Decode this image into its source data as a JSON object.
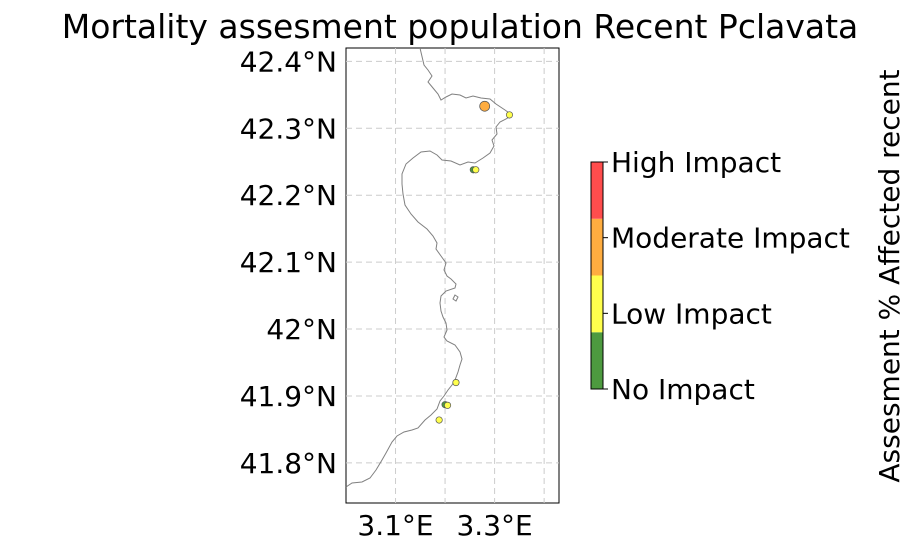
{
  "title": "Mortality assesment population Recent Pclavata",
  "map": {
    "lat_ticks": [
      "42.4°N",
      "42.3°N",
      "42.2°N",
      "42.1°N",
      "42°N",
      "41.9°N",
      "41.8°N"
    ],
    "lon_ticks": [
      "3.1°E",
      "3.3°E"
    ],
    "extent": {
      "lon": [
        3.0,
        3.43
      ],
      "lat": [
        41.74,
        42.42
      ]
    },
    "gridlines": true,
    "coastline_color": "#808080"
  },
  "sites": [
    {
      "lon": 3.28,
      "lat": 42.333,
      "category": "Moderate Impact"
    },
    {
      "lon": 3.33,
      "lat": 42.32,
      "category": "Low Impact"
    },
    {
      "lon": 3.257,
      "lat": 42.238,
      "category": "No Impact"
    },
    {
      "lon": 3.262,
      "lat": 42.238,
      "category": "Low Impact"
    },
    {
      "lon": 3.222,
      "lat": 41.92,
      "category": "Low Impact"
    },
    {
      "lon": 3.2,
      "lat": 41.887,
      "category": "No Impact"
    },
    {
      "lon": 3.205,
      "lat": 41.886,
      "category": "Low Impact"
    },
    {
      "lon": 3.188,
      "lat": 41.864,
      "category": "Low Impact"
    }
  ],
  "colorbar": {
    "label": "Assesment % Affected recent",
    "categories": [
      {
        "label": "No Impact",
        "color": "#4d9a3f"
      },
      {
        "label": "Low Impact",
        "color": "#ffff4d"
      },
      {
        "label": "Moderate Impact",
        "color": "#ffad40"
      },
      {
        "label": "High Impact",
        "color": "#ff4d4d"
      }
    ]
  }
}
